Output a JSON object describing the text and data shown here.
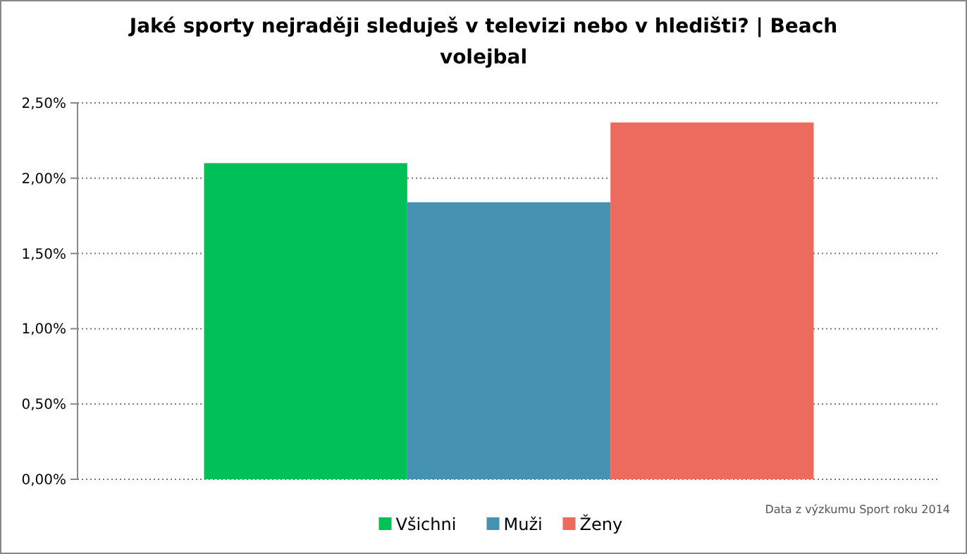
{
  "chart_data": {
    "type": "bar",
    "title": "Jaké sporty nejraději sleduješ v televizi nebo v hledišti? | Beach volejbal",
    "categories": [
      null
    ],
    "series": [
      {
        "name": "Všichni",
        "color": "#00c057",
        "values": [
          2.1
        ]
      },
      {
        "name": "Muži",
        "color": "#4593b1",
        "values": [
          1.84
        ]
      },
      {
        "name": "Ženy",
        "color": "#ed6a5f",
        "values": [
          2.37
        ]
      }
    ],
    "ylim": [
      0,
      2.5
    ],
    "yticks": [
      {
        "value": 0,
        "label": "0,00%"
      },
      {
        "value": 0.5,
        "label": "0,50%"
      },
      {
        "value": 1,
        "label": "1,00%"
      },
      {
        "value": 1.5,
        "label": "1,50%"
      },
      {
        "value": 2,
        "label": "2,00%"
      },
      {
        "value": 2.5,
        "label": "2,50%"
      }
    ],
    "grid": "y",
    "legend": "bottom",
    "annotations": [
      "Data z výzkumu Sport roku 2014"
    ]
  }
}
